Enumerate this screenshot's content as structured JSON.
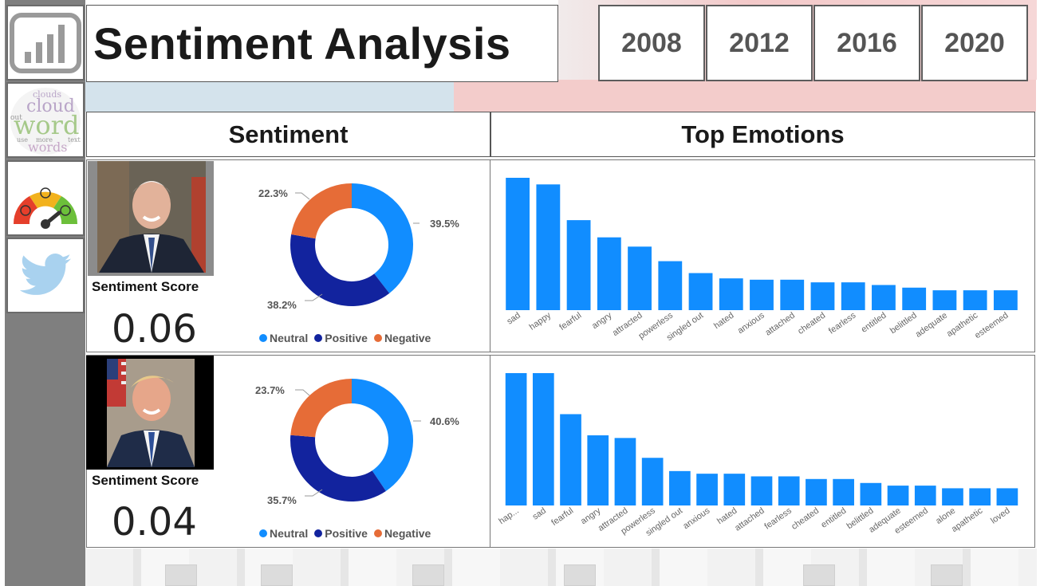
{
  "header": {
    "title": "Sentiment Analysis",
    "years": [
      "2008",
      "2012",
      "2016",
      "2020"
    ]
  },
  "nav": {
    "items": [
      {
        "icon": "bar-chart-icon"
      },
      {
        "icon": "word-cloud-icon",
        "words": [
          "clouds",
          "cloud",
          "word",
          "words",
          "use",
          "more",
          "text",
          "out"
        ]
      },
      {
        "icon": "sentiment-gauge-icon"
      },
      {
        "icon": "twitter-bird-icon"
      }
    ]
  },
  "sections": {
    "sentiment": "Sentiment",
    "emotions": "Top Emotions"
  },
  "colors": {
    "neutral": "#118DFF",
    "positive": "#12239E",
    "negative": "#E66C37",
    "bar": "#118DFF"
  },
  "rows": [
    {
      "score_label": "Sentiment Score",
      "score": "0.06",
      "sentiment": {
        "neutral": 39.5,
        "positive": 38.2,
        "negative": 22.3,
        "labels": {
          "neutral": "39.5%",
          "positive": "38.2%",
          "negative": "22.3%"
        }
      },
      "legend": [
        "Neutral",
        "Positive",
        "Negative"
      ],
      "emotions": {
        "categories": [
          "sad",
          "happy",
          "fearful",
          "angry",
          "attracted",
          "powerless",
          "singled out",
          "hated",
          "anxious",
          "attached",
          "cheated",
          "fearless",
          "entitled",
          "belittled",
          "adequate",
          "apathetic",
          "esteemed"
        ],
        "values": [
          100,
          95,
          68,
          55,
          48,
          37,
          28,
          24,
          23,
          23,
          21,
          21,
          19,
          17,
          15,
          15,
          15
        ]
      }
    },
    {
      "score_label": "Sentiment Score",
      "score": "0.04",
      "sentiment": {
        "neutral": 40.6,
        "positive": 35.7,
        "negative": 23.7,
        "labels": {
          "neutral": "40.6%",
          "positive": "35.7%",
          "negative": "23.7%"
        }
      },
      "legend": [
        "Neutral",
        "Positive",
        "Negative"
      ],
      "emotions": {
        "categories": [
          "hap...",
          "sad",
          "fearful",
          "angry",
          "attracted",
          "powerless",
          "singled out",
          "anxious",
          "hated",
          "attached",
          "fearless",
          "cheated",
          "entitled",
          "belittled",
          "adequate",
          "esteemed",
          "alone",
          "apathetic",
          "loved"
        ],
        "values": [
          100,
          100,
          69,
          53,
          51,
          36,
          26,
          24,
          24,
          22,
          22,
          20,
          20,
          17,
          15,
          15,
          13,
          13,
          13
        ]
      }
    }
  ]
}
